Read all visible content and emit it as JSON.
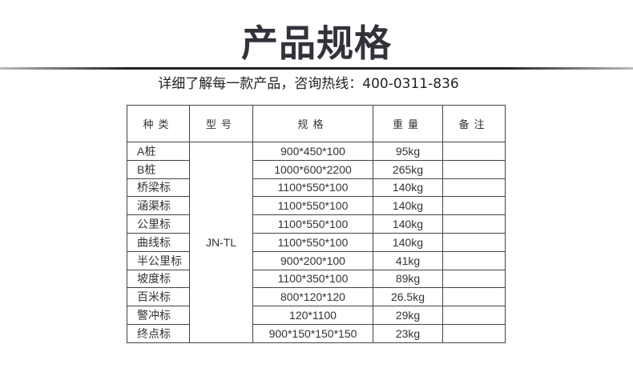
{
  "title": "产品规格",
  "subtitle": "详细了解每一款产品，咨询热线：400-0311-836",
  "table": {
    "headers": [
      "种类",
      "型号",
      "规格",
      "重量",
      "备注"
    ],
    "model": "JN-TL",
    "rows": [
      {
        "kind": "A桩",
        "spec": "900*450*100",
        "weight": "95kg",
        "note": ""
      },
      {
        "kind": "B桩",
        "spec": "1000*600*2200",
        "weight": "265kg",
        "note": ""
      },
      {
        "kind": "桥梁标",
        "spec": "1100*550*100",
        "weight": "140kg",
        "note": ""
      },
      {
        "kind": "涵渠标",
        "spec": "1100*550*100",
        "weight": "140kg",
        "note": ""
      },
      {
        "kind": "公里标",
        "spec": "1100*550*100",
        "weight": "140kg",
        "note": ""
      },
      {
        "kind": "曲线标",
        "spec": "1100*550*100",
        "weight": "140kg",
        "note": ""
      },
      {
        "kind": "半公里标",
        "spec": "900*200*100",
        "weight": "41kg",
        "note": ""
      },
      {
        "kind": "坡度标",
        "spec": "1100*350*100",
        "weight": "89kg",
        "note": ""
      },
      {
        "kind": "百米标",
        "spec": "800*120*120",
        "weight": "26.5kg",
        "note": ""
      },
      {
        "kind": "警冲标",
        "spec": "120*1100",
        "weight": "29kg",
        "note": ""
      },
      {
        "kind": "终点标",
        "spec": "900*150*150*150",
        "weight": "23kg",
        "note": ""
      }
    ]
  }
}
